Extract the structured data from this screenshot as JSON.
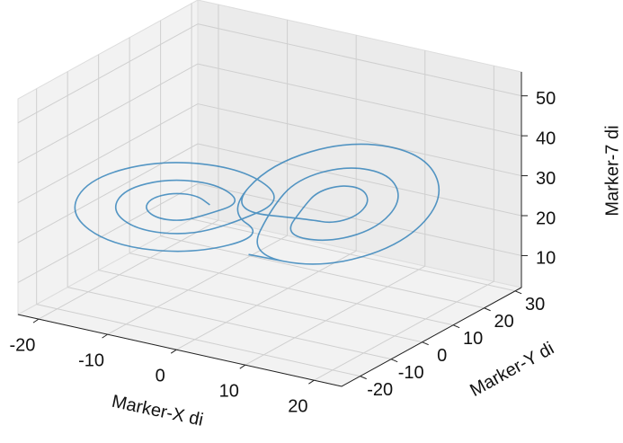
{
  "chart_data": {
    "type": "line3d",
    "xlabel": "Marker-X di",
    "ylabel": "Marker-Y di",
    "zlabel": "Marker-7 di",
    "xlim": [
      -23,
      24
    ],
    "ylim": [
      -26,
      32
    ],
    "zlim": [
      2,
      56
    ],
    "xticks": [
      -20,
      -10,
      0,
      10,
      20
    ],
    "yticks": [
      -20,
      -10,
      0,
      10,
      20,
      30
    ],
    "zticks": [
      10,
      20,
      30,
      40,
      50
    ],
    "grid": true,
    "series": [
      {
        "color": "#1f77b4",
        "x": [
          -5,
          -5.9,
          -8,
          -10.1,
          -11,
          -10.1,
          -8,
          -5.9,
          -2,
          -3.7,
          -8,
          -12.3,
          -14,
          -12.3,
          -8,
          -3.7,
          2,
          -0.9,
          -8,
          -15.1,
          -18,
          -15.1,
          -8,
          -0.9,
          -2,
          0.9,
          8,
          15.1,
          18,
          15.1,
          8,
          0.9,
          2,
          3.7,
          8,
          12.3,
          14,
          12.3,
          8,
          3.7,
          5,
          5.9,
          8,
          10.1,
          11,
          10.1,
          8,
          5.9,
          -2,
          0.9,
          8,
          15.1,
          18,
          15.1,
          8,
          0.9
        ],
        "y": [
          -4.1,
          -6.3,
          -9.5,
          -11.9,
          -11.9,
          -9.7,
          -6.5,
          -4.1,
          -0.2,
          -4.6,
          -11,
          -15.6,
          -15.8,
          -11.4,
          -5,
          -0.4,
          5,
          -2.3,
          -13,
          -20.7,
          -21,
          -13.7,
          -3,
          4.7,
          -5,
          2.3,
          13,
          20.7,
          21,
          13.7,
          3,
          -4.7,
          0.2,
          4.6,
          11,
          15.6,
          15.8,
          11.4,
          5,
          0.4,
          4.1,
          6.3,
          9.5,
          11.9,
          11.9,
          9.7,
          6.5,
          4.1,
          -5,
          2.3,
          13,
          20.7,
          21,
          13.7,
          3,
          -4.7
        ],
        "z": [
          27,
          30,
          31.2,
          30,
          27,
          24,
          22.8,
          24,
          27,
          33,
          35.4,
          33,
          27,
          21,
          18.6,
          21,
          27,
          36.9,
          41,
          36.9,
          27,
          17.1,
          13,
          17.1,
          27,
          36.9,
          41,
          36.9,
          27,
          17.1,
          13,
          17.1,
          27,
          33,
          35.4,
          33,
          27,
          21,
          18.6,
          21,
          27,
          30,
          31.2,
          30,
          27,
          24,
          22.8,
          24,
          27,
          36.9,
          41,
          36.9,
          27,
          17.1,
          13,
          17.1
        ]
      }
    ]
  }
}
